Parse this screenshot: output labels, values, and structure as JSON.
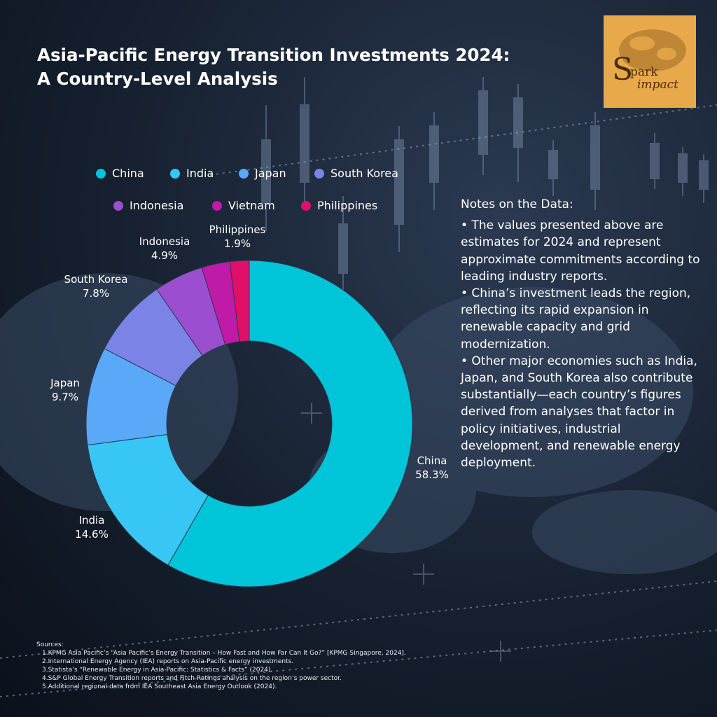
{
  "title_line1": "Asia-Pacific Energy Transition Investments 2024:",
  "title_line2": "A Country-Level Analysis",
  "logo": {
    "name": "Spark Impact",
    "text_main": "Spark",
    "text_sub": "impact",
    "bg_color": "#e8a94a"
  },
  "chart_data": {
    "type": "pie",
    "subtype": "donut",
    "title": "",
    "labels": [
      "China",
      "India",
      "Japan",
      "South Korea",
      "Indonesia",
      "Vietnam",
      "Philippines"
    ],
    "values": [
      58.3,
      14.6,
      9.7,
      7.8,
      4.9,
      2.8,
      1.9
    ],
    "value_labels": [
      "58.3%",
      "14.6%",
      "9.7%",
      "7.8%",
      "4.9%",
      "",
      "1.9%"
    ],
    "colors": [
      "#00c4d8",
      "#38c6f4",
      "#5aa8f8",
      "#7b84e6",
      "#9b4fd0",
      "#c01aa8",
      "#e0106a"
    ],
    "legend_position": "top"
  },
  "notes": {
    "heading": "Notes on the Data:",
    "items": [
      "•    The values presented above are estimates for 2024 and represent approximate commitments according to leading industry reports.",
      "•    China’s investment leads the region, reflecting its rapid expansion in renewable capacity and grid modernization.",
      "•    Other major economies such as India, Japan, and South Korea also contribute substantially—each country’s figures derived from analyses that factor in policy initiatives, industrial development, and renewable energy deployment."
    ]
  },
  "sources": {
    "heading": "Sources:",
    "items": [
      "1.KPMG Asia Pacific’s “Asia Pacific’s Energy Transition – How Fast and How Far Can It Go?” [KPMG Singapore, 2024].",
      "2.International Energy Agency (IEA) reports on Asia-Pacific energy investments.",
      "3.Statista’s “Renewable Energy in Asia-Pacific: Statistics & Facts” (2024).",
      "4.S&P Global Energy Transition reports and Fitch Ratings analysis on the region’s power sector.",
      "5.Additional regional data from IEA Southeast Asia Energy Outlook (2024)."
    ]
  }
}
